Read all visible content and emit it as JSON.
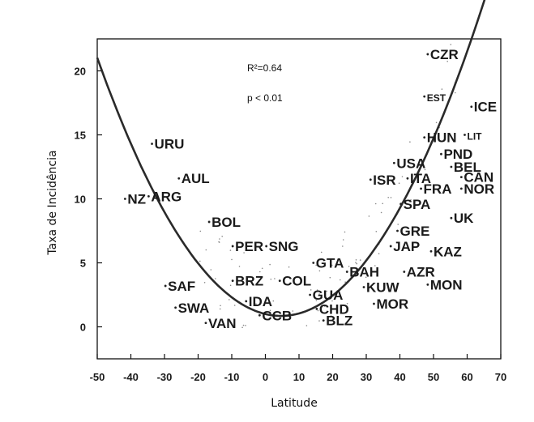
{
  "chart_data": {
    "type": "scatter",
    "xlabel": "Latitude",
    "ylabel": "Taxa de Incidência",
    "xlim": [
      -50,
      70
    ],
    "ylim": [
      -2.5,
      22.5
    ],
    "xticks": [
      -50,
      -40,
      -30,
      -20,
      -10,
      0,
      10,
      20,
      30,
      40,
      50,
      60,
      70
    ],
    "yticks": [
      0,
      5,
      10,
      15,
      20
    ],
    "annotations": [
      "R²=0.64",
      "p < 0.01"
    ],
    "points": [
      {
        "label": "CZR",
        "x": 49,
        "y": 21.3
      },
      {
        "label": "EST",
        "x": 48,
        "y": 18.0,
        "small": true
      },
      {
        "label": "ICE",
        "x": 62,
        "y": 17.2
      },
      {
        "label": "HUN",
        "x": 48,
        "y": 14.8
      },
      {
        "label": "LIT",
        "x": 60,
        "y": 15.0,
        "small": true
      },
      {
        "label": "PND",
        "x": 53,
        "y": 13.5
      },
      {
        "label": "USA",
        "x": 39,
        "y": 12.8
      },
      {
        "label": "BEL",
        "x": 56,
        "y": 12.5
      },
      {
        "label": "CAN",
        "x": 59,
        "y": 11.7
      },
      {
        "label": "ISR",
        "x": 32,
        "y": 11.5
      },
      {
        "label": "ITA",
        "x": 43,
        "y": 11.6
      },
      {
        "label": "FRA",
        "x": 47,
        "y": 10.8
      },
      {
        "label": "NOR",
        "x": 59,
        "y": 10.8
      },
      {
        "label": "SPA",
        "x": 41,
        "y": 9.6
      },
      {
        "label": "UK",
        "x": 56,
        "y": 8.5
      },
      {
        "label": "GRE",
        "x": 40,
        "y": 7.5
      },
      {
        "label": "JAP",
        "x": 38,
        "y": 6.3
      },
      {
        "label": "KAZ",
        "x": 50,
        "y": 5.9
      },
      {
        "label": "URU",
        "x": -33,
        "y": 14.3
      },
      {
        "label": "AUL",
        "x": -25,
        "y": 11.6
      },
      {
        "label": "NZ",
        "x": -41,
        "y": 10.0
      },
      {
        "label": "ARG",
        "x": -34,
        "y": 10.2
      },
      {
        "label": "BOL",
        "x": -16,
        "y": 8.2
      },
      {
        "label": "PER",
        "x": -9,
        "y": 6.3
      },
      {
        "label": "SNG",
        "x": 1,
        "y": 6.3
      },
      {
        "label": "GTA",
        "x": 15,
        "y": 5.0
      },
      {
        "label": "BAH",
        "x": 25,
        "y": 4.3
      },
      {
        "label": "AZR",
        "x": 42,
        "y": 4.3
      },
      {
        "label": "MON",
        "x": 49,
        "y": 3.3
      },
      {
        "label": "SAF",
        "x": -29,
        "y": 3.2
      },
      {
        "label": "BRZ",
        "x": -9,
        "y": 3.6
      },
      {
        "label": "COL",
        "x": 5,
        "y": 3.6
      },
      {
        "label": "KUW",
        "x": 30,
        "y": 3.1
      },
      {
        "label": "GUA",
        "x": 14,
        "y": 2.5
      },
      {
        "label": "IDA",
        "x": -5,
        "y": 2.0
      },
      {
        "label": "MOR",
        "x": 33,
        "y": 1.8
      },
      {
        "label": "SWA",
        "x": -26,
        "y": 1.5
      },
      {
        "label": "CHD",
        "x": 16,
        "y": 1.4
      },
      {
        "label": "CCB",
        "x": -1,
        "y": 0.9
      },
      {
        "label": "VAN",
        "x": -17,
        "y": 0.3
      },
      {
        "label": "BLZ",
        "x": 18,
        "y": 0.5
      }
    ],
    "fit": {
      "type": "quadratic",
      "a": 0.00675,
      "b": -0.063,
      "c": 1.0
    }
  }
}
